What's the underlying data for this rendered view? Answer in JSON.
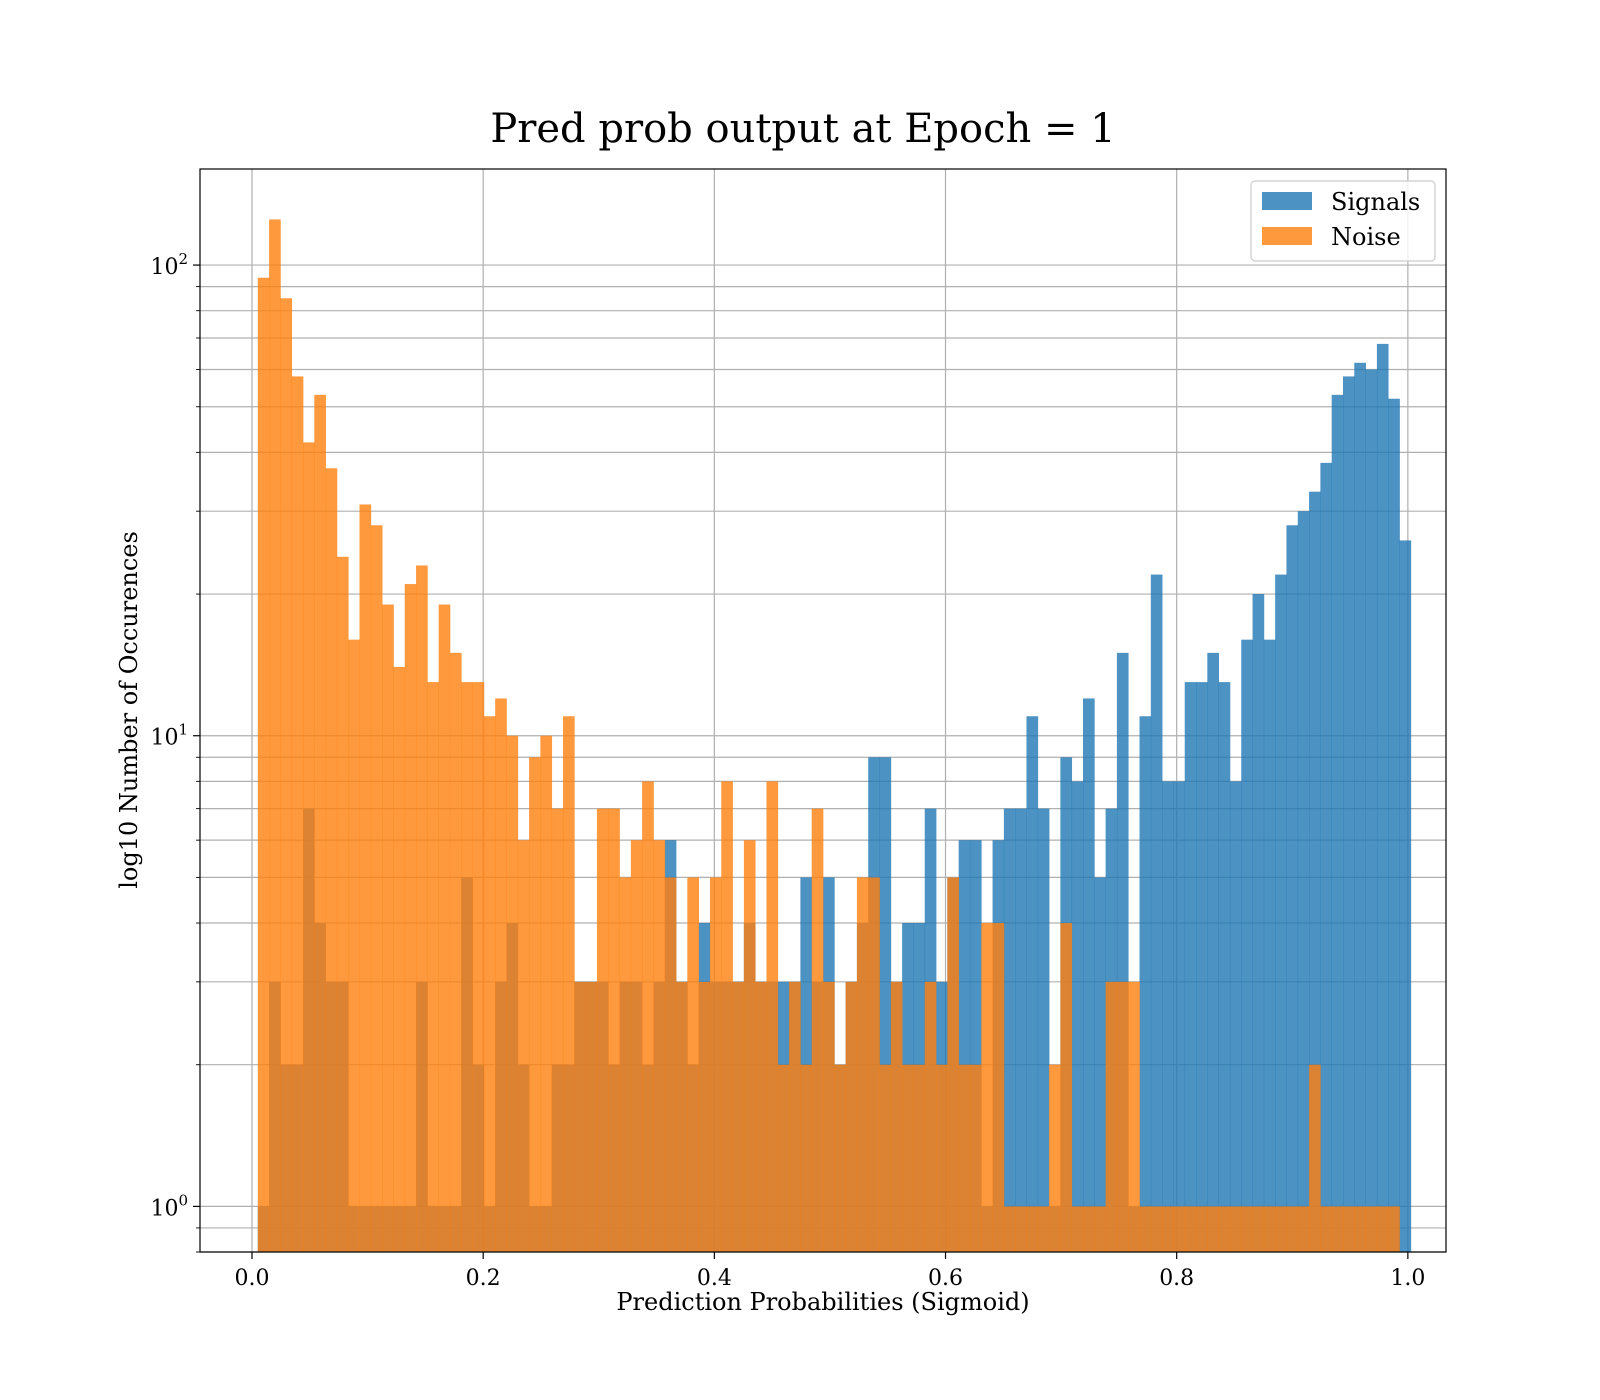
{
  "chart_data": {
    "type": "histogram",
    "title": "Pred prob output at Epoch = 1",
    "xlabel": "Prediction Probabilities (Sigmoid)",
    "ylabel": "log10 Number of Occurences",
    "xlim": [
      -0.045,
      1.033
    ],
    "ylim": [
      0.8,
      160
    ],
    "yscale": "log",
    "grid": true,
    "legend_position": "upper right",
    "x_ticks": [
      0.0,
      0.2,
      0.4,
      0.6,
      0.8,
      1.0
    ],
    "x_tick_labels": [
      "0.0",
      "0.2",
      "0.4",
      "0.6",
      "0.8",
      "1.0"
    ],
    "y_major_ticks": [
      1,
      10,
      100
    ],
    "y_tick_labels": [
      {
        "base": "10",
        "exp": "0"
      },
      {
        "base": "10",
        "exp": "1"
      },
      {
        "base": "10",
        "exp": "2"
      }
    ],
    "series": [
      {
        "name": "Signals",
        "color": "#1f77b4",
        "bin_start": 0.005,
        "bin_width": 0.00978,
        "values": [
          1,
          3,
          2,
          2,
          7,
          4,
          3,
          3,
          1,
          1,
          1,
          1,
          1,
          1,
          3,
          1,
          1,
          1,
          5,
          2,
          1,
          3,
          4,
          2,
          1,
          1,
          2,
          2,
          3,
          3,
          3,
          2,
          3,
          3,
          2,
          3,
          6,
          3,
          2,
          4,
          3,
          3,
          3,
          4,
          3,
          3,
          3,
          3,
          5,
          3,
          5,
          2,
          3,
          4,
          9,
          9,
          3,
          4,
          4,
          7,
          3,
          5,
          6,
          6,
          1,
          6,
          7,
          7,
          11,
          7,
          1,
          9,
          8,
          12,
          5,
          7,
          15,
          1,
          11,
          22,
          8,
          8,
          13,
          13,
          15,
          13,
          8,
          16,
          20,
          16,
          22,
          28,
          30,
          33,
          38,
          53,
          58,
          62,
          60,
          68,
          52,
          26
        ]
      },
      {
        "name": "Noise",
        "color": "#ff7f0e",
        "bin_start": 0.005,
        "bin_width": 0.00978,
        "values": [
          94,
          125,
          85,
          58,
          42,
          53,
          37,
          24,
          16,
          31,
          28,
          19,
          14,
          21,
          23,
          13,
          19,
          15,
          13,
          13,
          11,
          12,
          10,
          6,
          9,
          10,
          7,
          11,
          3,
          3,
          7,
          7,
          5,
          6,
          8,
          6,
          5,
          3,
          5,
          3,
          5,
          8,
          3,
          6,
          3,
          8,
          2,
          3,
          2,
          7,
          3,
          2,
          3,
          5,
          5,
          2,
          3,
          2,
          2,
          3,
          2,
          5,
          2,
          2,
          4,
          4,
          1,
          1,
          1,
          1,
          2,
          4,
          1,
          1,
          1,
          3,
          3,
          3,
          1,
          1,
          1,
          1,
          1,
          1,
          1,
          1,
          1,
          1,
          1,
          1,
          1,
          1,
          1,
          2,
          1,
          1,
          1,
          1,
          1,
          1,
          1
        ]
      }
    ]
  }
}
